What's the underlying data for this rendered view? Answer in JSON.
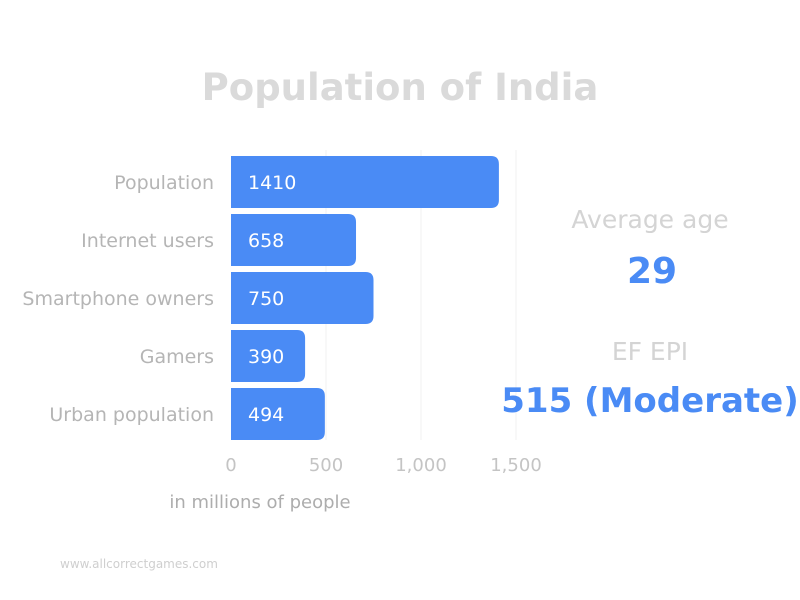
{
  "chart_data": {
    "type": "bar",
    "orientation": "horizontal",
    "title": "Population of India",
    "categories": [
      "Population",
      "Internet users",
      "Smartphone owners",
      "Gamers",
      "Urban population"
    ],
    "values": [
      1410,
      658,
      750,
      390,
      494
    ],
    "xlabel": "in millions of people",
    "ylabel": "",
    "xlim": [
      0,
      1500
    ],
    "xticks": [
      0,
      500,
      1000,
      1500
    ],
    "xtick_labels": [
      "0",
      "500",
      "1,000",
      "1,500"
    ],
    "grid": true,
    "data_labels": true,
    "legend": "none"
  },
  "stats": {
    "average_age_label": "Average age",
    "average_age_value": "29",
    "ef_epi_label": "EF EPI",
    "ef_epi_value": "515 (Moderate)"
  },
  "watermark": "www.allcorrectgames.com",
  "colors": {
    "bar": "#4a8bf5",
    "accent_text": "#4a8bf5",
    "title": "#dadada",
    "category_label": "#b5b5b5",
    "tick_label": "#c4c4c4",
    "grid": "#f0f0f0"
  }
}
